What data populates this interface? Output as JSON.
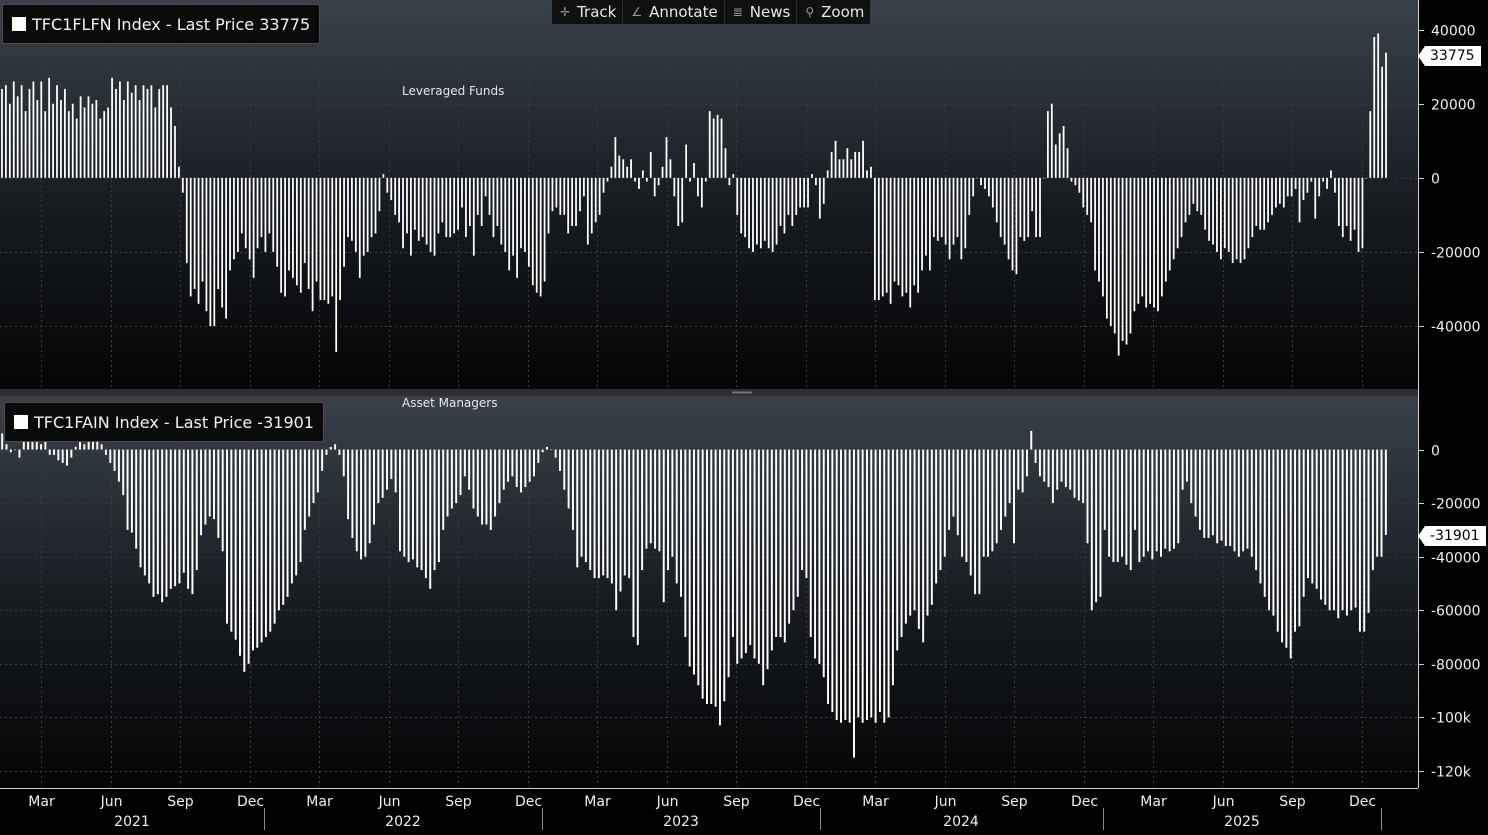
{
  "toolbar": {
    "track": "Track",
    "track_icon": "crosshair-icon",
    "annotate": "Annotate",
    "annotate_icon": "pencil-icon",
    "news": "News",
    "news_icon": "news-icon",
    "zoom": "Zoom",
    "zoom_icon": "magnifier-icon"
  },
  "top_legend": "TFC1FLFN Index - Last Price 33775",
  "bottom_legend": "TFC1FAIN Index - Last Price -31901",
  "colors": {
    "background": "#000000",
    "bars": "#ffffff",
    "grid": "#3c3c3c"
  },
  "chart_data": [
    {
      "type": "bar",
      "title": "Leveraged Funds",
      "series_name": "TFC1FLFN Index",
      "last_price": 33775,
      "last_price_label": "33775",
      "ylim": [
        -57000,
        48000
      ],
      "yticks": [
        -40000,
        -20000,
        0,
        20000,
        40000
      ],
      "ytick_labels": [
        "-40000",
        "-20000",
        "0",
        "20000",
        "40000"
      ],
      "grid": true,
      "values": [
        24000,
        25000,
        20000,
        26000,
        22000,
        25000,
        18000,
        24000,
        26000,
        21000,
        26000,
        18000,
        27000,
        20000,
        25000,
        21000,
        24000,
        18000,
        20000,
        16000,
        22000,
        19000,
        22000,
        20000,
        21000,
        16000,
        18000,
        19000,
        27000,
        24000,
        26000,
        21000,
        26000,
        23000,
        25000,
        21000,
        25000,
        24000,
        25000,
        19000,
        24000,
        25000,
        25000,
        19000,
        14000,
        3000,
        -4000,
        -23000,
        -32000,
        -30000,
        -34000,
        -28000,
        -36000,
        -40000,
        -40000,
        -30000,
        -35000,
        -38000,
        -25000,
        -22000,
        -20000,
        -15000,
        -19000,
        -22000,
        -27000,
        -19000,
        -16000,
        -20000,
        -15000,
        -20000,
        -24000,
        -31000,
        -32000,
        -25000,
        -27000,
        -29000,
        -31000,
        -23000,
        -30000,
        -36000,
        -28000,
        -33000,
        -33000,
        -34000,
        -32000,
        -47000,
        -33000,
        -24000,
        -16000,
        -17000,
        -20000,
        -27000,
        -21000,
        -20000,
        -16000,
        -15000,
        -9000,
        1000,
        -4000,
        -6000,
        -10000,
        -12000,
        -19000,
        -15000,
        -21000,
        -14000,
        -17000,
        -16000,
        -18000,
        -20000,
        -21000,
        -15000,
        -12000,
        -16000,
        -16000,
        -15000,
        -14000,
        -8000,
        -16000,
        -13000,
        -21000,
        -10000,
        -13000,
        -5000,
        -10000,
        -16000,
        -13000,
        -18000,
        -20000,
        -25000,
        -21000,
        -27000,
        -19000,
        -20000,
        -24000,
        -29000,
        -31000,
        -32000,
        -28000,
        -15000,
        -9000,
        -8000,
        -10000,
        -10000,
        -15000,
        -13000,
        -13000,
        -9000,
        -5000,
        -18000,
        -15000,
        -12000,
        -10000,
        -4000,
        -1000,
        3000,
        11000,
        6000,
        5000,
        3000,
        5000,
        -1000,
        -3000,
        2000,
        -1000,
        7000,
        -5000,
        -2000,
        3000,
        11000,
        5000,
        -5000,
        -13000,
        -12000,
        9000,
        -1000,
        4000,
        -5000,
        -8000,
        -1000,
        18000,
        16000,
        17000,
        16000,
        8000,
        -2000,
        1000,
        -10000,
        -15000,
        -16000,
        -19000,
        -20000,
        -18000,
        -19000,
        -17000,
        -19000,
        -20000,
        -18000,
        -13000,
        -15000,
        -10000,
        -13000,
        -10000,
        -8000,
        -8000,
        -8000,
        1000,
        -2000,
        -11000,
        -7000,
        2000,
        7000,
        10000,
        5000,
        5000,
        8000,
        5000,
        7000,
        7000,
        10000,
        2000,
        3000,
        -33000,
        -33000,
        -32000,
        -31000,
        -34000,
        -28000,
        -29000,
        -32000,
        -31000,
        -35000,
        -29000,
        -31000,
        -25000,
        -21000,
        -25000,
        -16000,
        -17000,
        -16000,
        -18000,
        -22000,
        -18000,
        -16000,
        -22000,
        -19000,
        -10000,
        -5000,
        0,
        -2000,
        -3000,
        -5000,
        -8000,
        -12000,
        -16000,
        -18000,
        -22000,
        -25000,
        -26000,
        -16000,
        -17000,
        -16000,
        -9000,
        -16000,
        -16000,
        0,
        18000,
        20000,
        9000,
        12000,
        14000,
        8000,
        -1000,
        -2000,
        -4000,
        -8000,
        -10000,
        -12000,
        -25000,
        -28000,
        -32000,
        -38000,
        -40000,
        -42000,
        -48000,
        -44000,
        -45000,
        -42000,
        -36000,
        -34000,
        -32000,
        -35000,
        -34000,
        -35000,
        -36000,
        -32000,
        -28000,
        -25000,
        -22000,
        -19000,
        -16000,
        -12000,
        -10000,
        -7000,
        -9000,
        -10000,
        -14000,
        -17000,
        -18000,
        -20000,
        -22000,
        -19000,
        -20000,
        -23000,
        -22000,
        -23000,
        -22000,
        -19000,
        -16000,
        -13000,
        -14000,
        -14000,
        -12000,
        -10000,
        -8000,
        -7000,
        -8000,
        -5000,
        -5000,
        -3000,
        -12000,
        -6000,
        -4000,
        -1000,
        -11000,
        -5000,
        -1000,
        -3000,
        2000,
        -4000,
        -13000,
        -16000,
        -13000,
        -17000,
        -14000,
        -20000,
        -19000,
        0,
        18000,
        38000,
        39000,
        30000,
        33775
      ],
      "xtick_labels": [
        "Mar",
        "Jun",
        "Sep",
        "Dec",
        "Mar",
        "Jun",
        "Sep",
        "Dec",
        "Mar",
        "Jun",
        "Sep",
        "Dec",
        "Mar",
        "Jun",
        "Sep",
        "Dec",
        "Mar",
        "Jun",
        "Sep",
        "Dec"
      ],
      "year_labels": [
        "2021",
        "2022",
        "2023",
        "2024",
        "2025"
      ]
    },
    {
      "type": "bar",
      "title": "Asset Managers",
      "series_name": "TFC1FAIN Index",
      "last_price": -31901,
      "last_price_label": "-31901",
      "ylim": [
        -126000,
        20000
      ],
      "yticks": [
        -120000,
        -100000,
        -80000,
        -60000,
        -40000,
        -20000,
        0
      ],
      "ytick_labels": [
        "-120k",
        "-100k",
        "-80000",
        "-60000",
        "-40000",
        "-20000",
        "0"
      ],
      "grid": true,
      "values": [
        6000,
        2000,
        -1000,
        0,
        -3000,
        8000,
        5000,
        3000,
        5000,
        2000,
        5000,
        -2000,
        -2000,
        -4000,
        -5000,
        -6000,
        -3000,
        1000,
        4000,
        2000,
        6000,
        4000,
        3000,
        2000,
        -2000,
        -5000,
        -8000,
        -12000,
        -17000,
        -30000,
        -31000,
        -37000,
        -44000,
        -47000,
        -50000,
        -55000,
        -54000,
        -57000,
        -55000,
        -52000,
        -51000,
        -50000,
        -46000,
        -52000,
        -54000,
        -45000,
        -32000,
        -28000,
        -25000,
        -26000,
        -33000,
        -38000,
        -65000,
        -68000,
        -71000,
        -77000,
        -83000,
        -80000,
        -75000,
        -74000,
        -72000,
        -70000,
        -68000,
        -65000,
        -60000,
        -58000,
        -55000,
        -50000,
        -47000,
        -42000,
        -30000,
        -25000,
        -20000,
        -16000,
        -8000,
        -2000,
        1000,
        2000,
        -2000,
        -10000,
        -26000,
        -33000,
        -38000,
        -41000,
        -40000,
        -35000,
        -28000,
        -20000,
        -18000,
        -15000,
        -11000,
        -16000,
        -38000,
        -40000,
        -42000,
        -41000,
        -44000,
        -45000,
        -48000,
        -52000,
        -45000,
        -42000,
        -30000,
        -25000,
        -22000,
        -20000,
        -17000,
        -10000,
        -15000,
        -22000,
        -25000,
        -28000,
        -28000,
        -30000,
        -25000,
        -20000,
        -15000,
        -12000,
        -10000,
        -14000,
        -16000,
        -14000,
        -12000,
        -10000,
        -5000,
        -1000,
        1000,
        0,
        -3000,
        -8000,
        -15000,
        -22000,
        -30000,
        -44000,
        -40000,
        -42000,
        -45000,
        -48000,
        -48000,
        -47000,
        -48000,
        -50000,
        -60000,
        -53000,
        -47000,
        -48000,
        -70000,
        -73000,
        -45000,
        -37000,
        -35000,
        -37000,
        -38000,
        -57000,
        -45000,
        -40000,
        -50000,
        -55000,
        -70000,
        -81000,
        -84000,
        -88000,
        -93000,
        -95000,
        -95000,
        -96000,
        -103000,
        -94000,
        -85000,
        -70000,
        -80000,
        -78000,
        -76000,
        -73000,
        -78000,
        -80000,
        -88000,
        -82000,
        -75000,
        -70000,
        -70000,
        -72000,
        -65000,
        -60000,
        -55000,
        -45000,
        -48000,
        -70000,
        -78000,
        -80000,
        -85000,
        -95000,
        -98000,
        -101000,
        -102000,
        -101000,
        -102000,
        -115000,
        -100000,
        -102000,
        -101000,
        -100000,
        -102000,
        -98000,
        -102000,
        -100000,
        -88000,
        -75000,
        -70000,
        -65000,
        -62000,
        -60000,
        -67000,
        -72000,
        -62000,
        -58000,
        -50000,
        -45000,
        -40000,
        -30000,
        -25000,
        -32000,
        -40000,
        -42000,
        -47000,
        -54000,
        -54000,
        -40000,
        -40000,
        -38000,
        -35000,
        -30000,
        -25000,
        -20000,
        -35000,
        -15000,
        -16000,
        -10000,
        7000,
        -5000,
        -10000,
        -12000,
        -14000,
        -20000,
        -15000,
        -12000,
        -14000,
        -15000,
        -18000,
        -19000,
        -20000,
        -35000,
        -60000,
        -57000,
        -55000,
        -30000,
        -40000,
        -42000,
        -42000,
        -40000,
        -43000,
        -45000,
        -30000,
        -42000,
        -40000,
        -38000,
        -41000,
        -38000,
        -40000,
        -37000,
        -38000,
        -37000,
        -35000,
        -15000,
        -12000,
        -20000,
        -25000,
        -30000,
        -33000,
        -33000,
        -32000,
        -35000,
        -34000,
        -36000,
        -36000,
        -38000,
        -40000,
        -38000,
        -37000,
        -40000,
        -45000,
        -50000,
        -55000,
        -60000,
        -62000,
        -68000,
        -72000,
        -74000,
        -78000,
        -68000,
        -66000,
        -55000,
        -48000,
        -50000,
        -52000,
        -56000,
        -58000,
        -60000,
        -60000,
        -63000,
        -60000,
        -62000,
        -60000,
        -59000,
        -68000,
        -68000,
        -61000,
        -45000,
        -40000,
        -40000,
        -31901
      ],
      "xtick_labels": [
        "Mar",
        "Jun",
        "Sep",
        "Dec",
        "Mar",
        "Jun",
        "Sep",
        "Dec",
        "Mar",
        "Jun",
        "Sep",
        "Dec",
        "Mar",
        "Jun",
        "Sep",
        "Dec",
        "Mar",
        "Jun",
        "Sep",
        "Dec"
      ],
      "year_labels": [
        "2021",
        "2022",
        "2023",
        "2024",
        "2025"
      ]
    }
  ]
}
